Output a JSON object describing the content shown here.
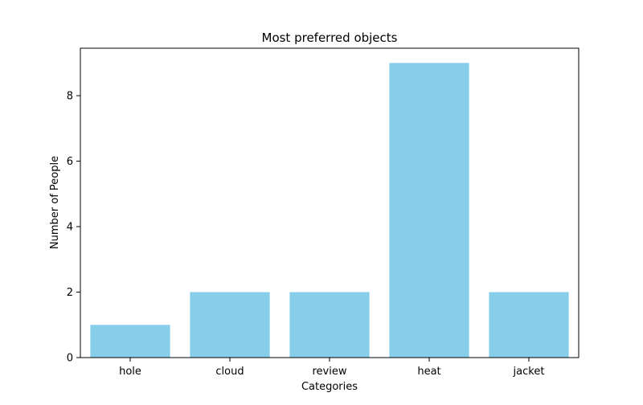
{
  "chart_data": {
    "type": "bar",
    "title": "Most preferred objects",
    "xlabel": "Categories",
    "ylabel": "Number of People",
    "categories": [
      "hole",
      "cloud",
      "review",
      "heat",
      "jacket"
    ],
    "values": [
      1,
      2,
      2,
      9,
      2
    ],
    "ylim": [
      0,
      9.45
    ],
    "yticks": [
      0,
      2,
      4,
      6,
      8
    ],
    "grid": false,
    "colors": {
      "bar": "#87ceeb",
      "axis": "#000000",
      "text": "#000000",
      "background": "#ffffff"
    }
  }
}
